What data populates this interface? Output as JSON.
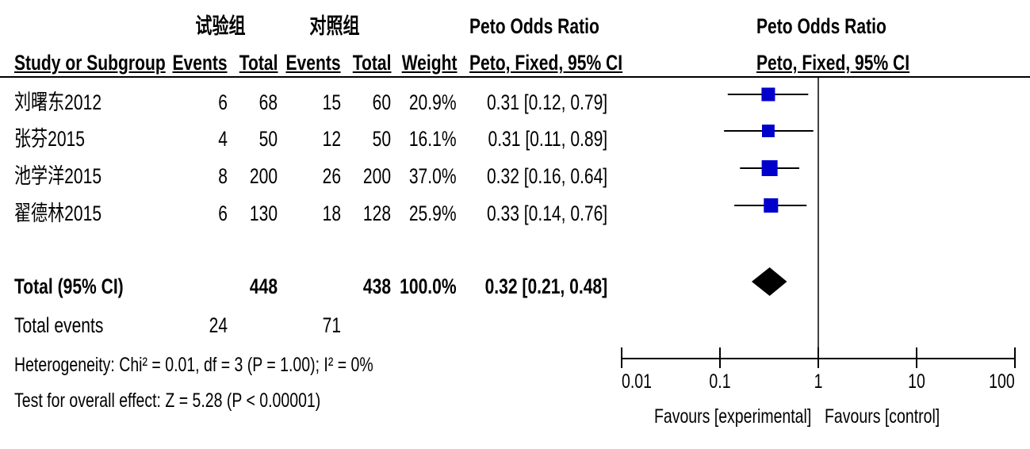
{
  "header": {
    "exp_group": "试验组",
    "ctl_group": "对照组",
    "ratio_title_left": "Peto Odds Ratio",
    "ratio_title_right": "Peto Odds Ratio",
    "study_col": "Study or Subgroup",
    "events_col": "Events",
    "total_col": "Total",
    "weight_col": "Weight",
    "ci_col_left": "Peto, Fixed, 95% CI",
    "ci_col_right": "Peto, Fixed, 95% CI"
  },
  "chart_data": {
    "type": "forest",
    "x_scale": "log",
    "xlim": [
      0.01,
      100
    ],
    "ticks": [
      0.01,
      0.1,
      1,
      10,
      100
    ],
    "tick_labels": [
      "0.01",
      "0.1",
      "1",
      "10",
      "100"
    ],
    "null_line": 1,
    "studies": [
      {
        "name": "刘曙东2012",
        "exp_events": "6",
        "exp_total": "68",
        "ctl_events": "15",
        "ctl_total": "60",
        "weight": "20.9%",
        "ci_text": "0.31 [0.12, 0.79]",
        "or": 0.31,
        "lo": 0.12,
        "hi": 0.79,
        "w": 20.9
      },
      {
        "name": "张芬2015",
        "exp_events": "4",
        "exp_total": "50",
        "ctl_events": "12",
        "ctl_total": "50",
        "weight": "16.1%",
        "ci_text": "0.31 [0.11, 0.89]",
        "or": 0.31,
        "lo": 0.11,
        "hi": 0.89,
        "w": 16.1
      },
      {
        "name": "池学洋2015",
        "exp_events": "8",
        "exp_total": "200",
        "ctl_events": "26",
        "ctl_total": "200",
        "weight": "37.0%",
        "ci_text": "0.32 [0.16, 0.64]",
        "or": 0.32,
        "lo": 0.16,
        "hi": 0.64,
        "w": 37.0
      },
      {
        "name": "翟德林2015",
        "exp_events": "6",
        "exp_total": "130",
        "ctl_events": "18",
        "ctl_total": "128",
        "weight": "25.9%",
        "ci_text": "0.33 [0.14, 0.76]",
        "or": 0.33,
        "lo": 0.14,
        "hi": 0.76,
        "w": 25.9
      }
    ],
    "total": {
      "label": "Total (95% CI)",
      "exp_total": "448",
      "ctl_total": "438",
      "weight": "100.0%",
      "ci_text": "0.32 [0.21, 0.48]",
      "or": 0.32,
      "lo": 0.21,
      "hi": 0.48
    },
    "total_events": {
      "label": "Total events",
      "exp": "24",
      "ctl": "71"
    },
    "heterogeneity": "Heterogeneity: Chi² = 0.01, df = 3 (P = 1.00); I² = 0%",
    "overall_effect": "Test for overall effect: Z = 5.28 (P < 0.00001)",
    "favours_left": "Favours [experimental]",
    "favours_right": "Favours [control]",
    "colors": {
      "square": "#0000cc",
      "diamond": "#000000",
      "line": "#000000"
    }
  }
}
